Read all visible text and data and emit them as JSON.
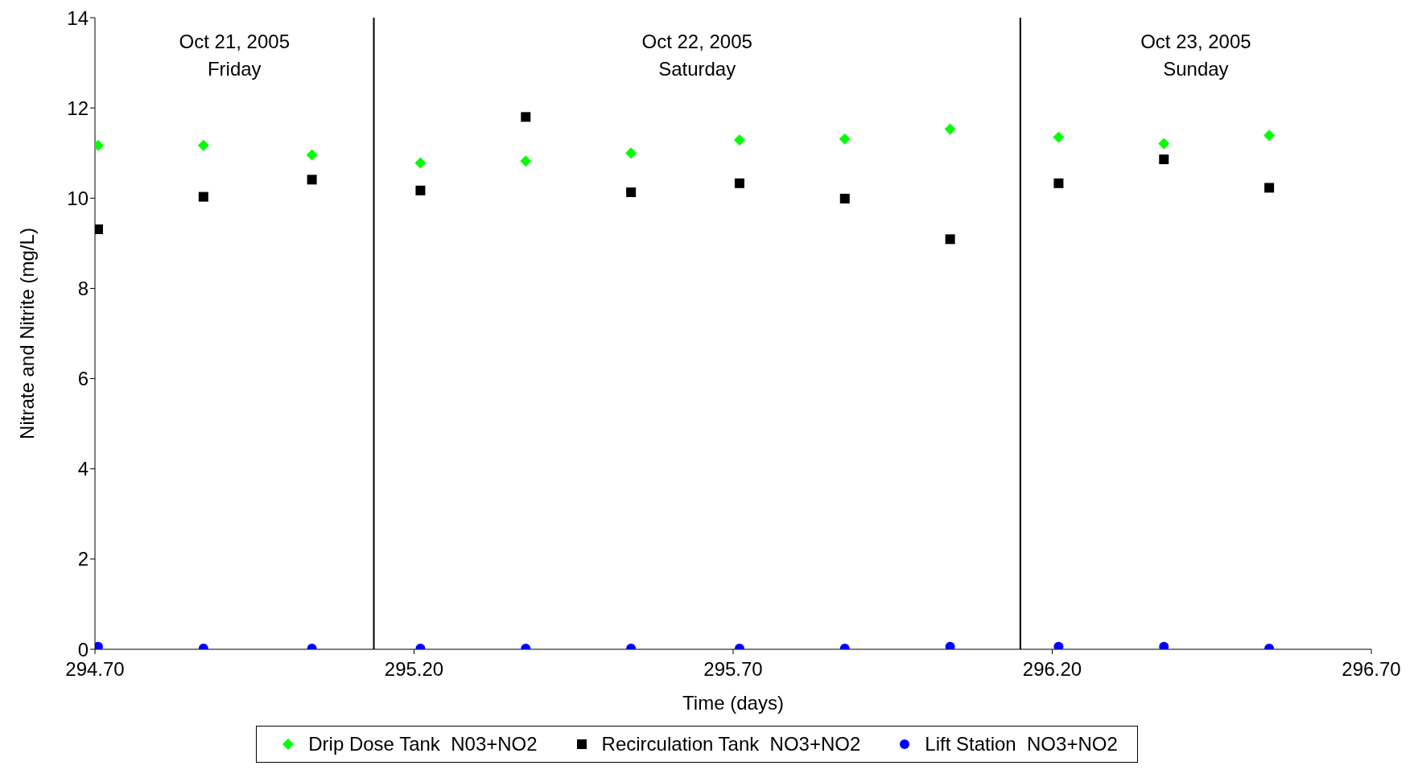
{
  "chart_data": {
    "type": "scatter",
    "xlabel": "Time (days)",
    "ylabel": "Nitrate and Nitrite (mg/L)",
    "x": [
      294.705,
      294.87,
      295.04,
      295.21,
      295.375,
      295.54,
      295.71,
      295.875,
      296.04,
      296.21,
      296.375,
      296.54
    ],
    "series": [
      {
        "name": "Drip Dose Tank  N03+NO2",
        "color": "#00ff00",
        "marker": "diamond",
        "values": [
          11.17,
          11.17,
          10.96,
          10.78,
          10.82,
          11.0,
          11.29,
          11.31,
          11.53,
          11.35,
          11.21,
          11.39
        ]
      },
      {
        "name": "Recirculation Tank  NO3+NO2",
        "color": "#000000",
        "marker": "square",
        "values": [
          9.31,
          10.03,
          10.41,
          10.17,
          11.8,
          10.13,
          10.33,
          9.99,
          9.09,
          10.33,
          10.86,
          10.23
        ]
      },
      {
        "name": "Lift Station  NO3+NO2",
        "color": "#0000ff",
        "marker": "circle",
        "values": [
          0.06,
          0.02,
          0.02,
          0.02,
          0.02,
          0.02,
          0.02,
          0.02,
          0.06,
          0.06,
          0.06,
          0.02
        ]
      }
    ],
    "xlim": [
      294.7,
      296.7
    ],
    "xticks": [
      {
        "value": 294.7,
        "label": "294.70"
      },
      {
        "value": 295.2,
        "label": "295.20"
      },
      {
        "value": 295.7,
        "label": "295.70"
      },
      {
        "value": 296.2,
        "label": "296.20"
      },
      {
        "value": 296.7,
        "label": "296.70"
      }
    ],
    "ylim": [
      0,
      14
    ],
    "yticks": [
      0,
      2,
      4,
      6,
      8,
      10,
      12,
      14
    ],
    "ref_lines": [
      {
        "axis": "x",
        "value": 295.137,
        "color": "#000000"
      },
      {
        "axis": "x",
        "value": 296.15,
        "color": "#000000"
      }
    ],
    "annotations": [
      "Oct 21, 2005\nFriday",
      "Oct 22, 2005\nSaturday",
      "Oct 23, 2005\nSunday"
    ],
    "legend": "bottom"
  }
}
